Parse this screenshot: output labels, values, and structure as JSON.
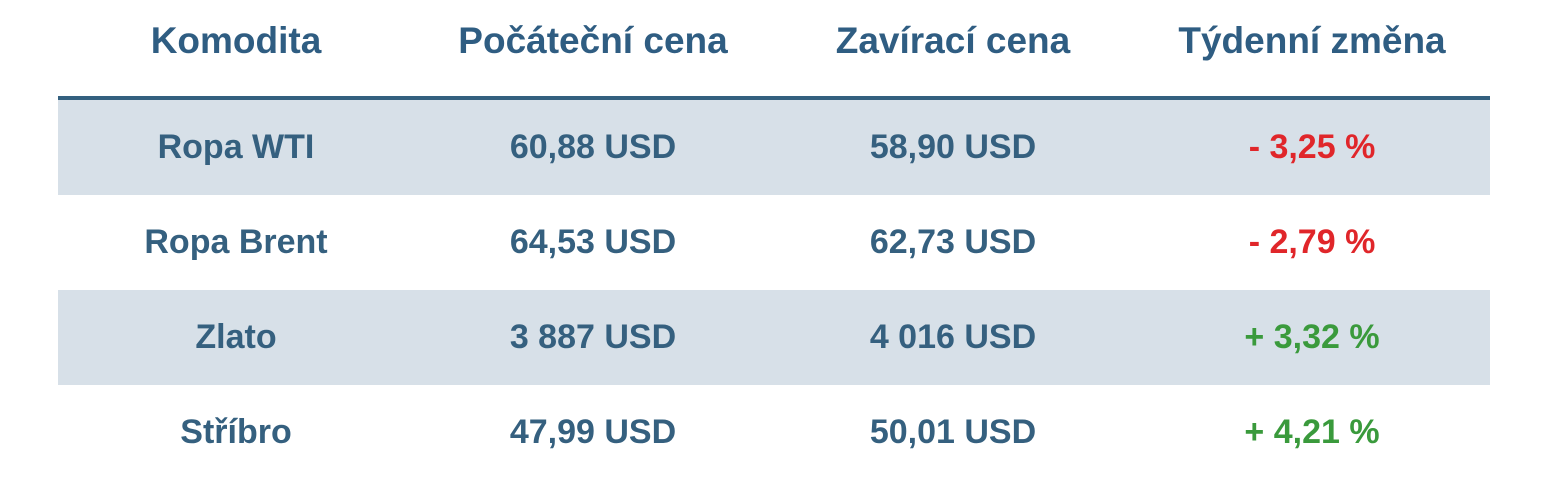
{
  "colors": {
    "header_text": "#2f5d82",
    "body_text": "#35607f",
    "row_shade": "#d7e0e8",
    "negative": "#e0262a",
    "positive": "#3a9a3c"
  },
  "headers": [
    "Komodita",
    "Počáteční cena",
    "Zavírací cena",
    "Týdenní změna"
  ],
  "rows": [
    {
      "name": "Ropa WTI",
      "open": "60,88 USD",
      "close": "58,90 USD",
      "change": "- 3,25 %",
      "trend": "negative"
    },
    {
      "name": "Ropa Brent",
      "open": "64,53 USD",
      "close": "62,73 USD",
      "change": "- 2,79 %",
      "trend": "negative"
    },
    {
      "name": "Zlato",
      "open": "3 887 USD",
      "close": "4 016 USD",
      "change": "+ 3,32 %",
      "trend": "positive"
    },
    {
      "name": "Stříbro",
      "open": "47,99 USD",
      "close": "50,01 USD",
      "change": "+ 4,21 %",
      "trend": "positive"
    }
  ]
}
